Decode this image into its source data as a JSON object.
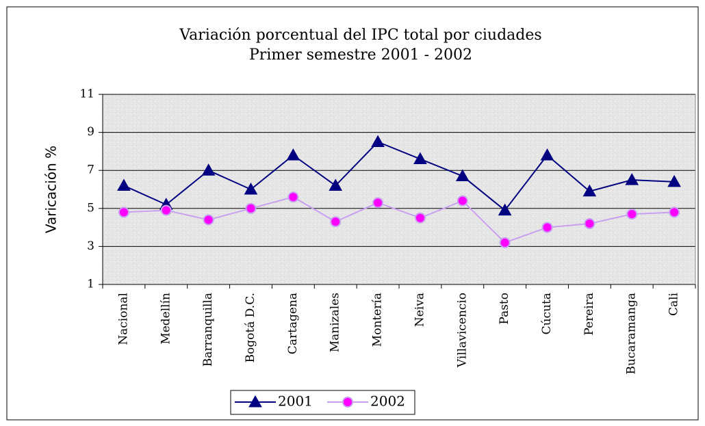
{
  "chart_data": {
    "type": "line",
    "title": "Variación porcentual  del IPC total por ciudades",
    "subtitle": "Primer semestre   2001 - 2002",
    "y_label": "Varicación %",
    "categories": [
      "Nacional",
      "Medellín",
      "Barranquilla",
      "Bogotá D.C.",
      "Cartagena",
      "Manizales",
      "Montería",
      "Neiva",
      "Villavicencio",
      "Pasto",
      "Cúcuta",
      "Pereira",
      "Bucaramanga",
      "Cali"
    ],
    "series": [
      {
        "name": "2001",
        "color": "#000080",
        "marker": "triangle",
        "values": [
          6.2,
          5.2,
          7.0,
          6.0,
          7.8,
          6.2,
          8.5,
          7.6,
          6.7,
          4.9,
          7.8,
          5.9,
          6.5,
          6.4
        ]
      },
      {
        "name": "2002",
        "color": "#ff00ff",
        "line_color": "#c8a0f0",
        "marker": "circle",
        "values": [
          4.8,
          4.9,
          4.4,
          5.0,
          5.6,
          4.3,
          5.3,
          4.5,
          5.4,
          3.2,
          4.0,
          4.2,
          4.7,
          4.8
        ]
      }
    ],
    "ylim": [
      1,
      11
    ],
    "yticks": [
      1,
      3,
      5,
      7,
      9,
      11
    ],
    "grid": true,
    "legend": "bottom"
  }
}
